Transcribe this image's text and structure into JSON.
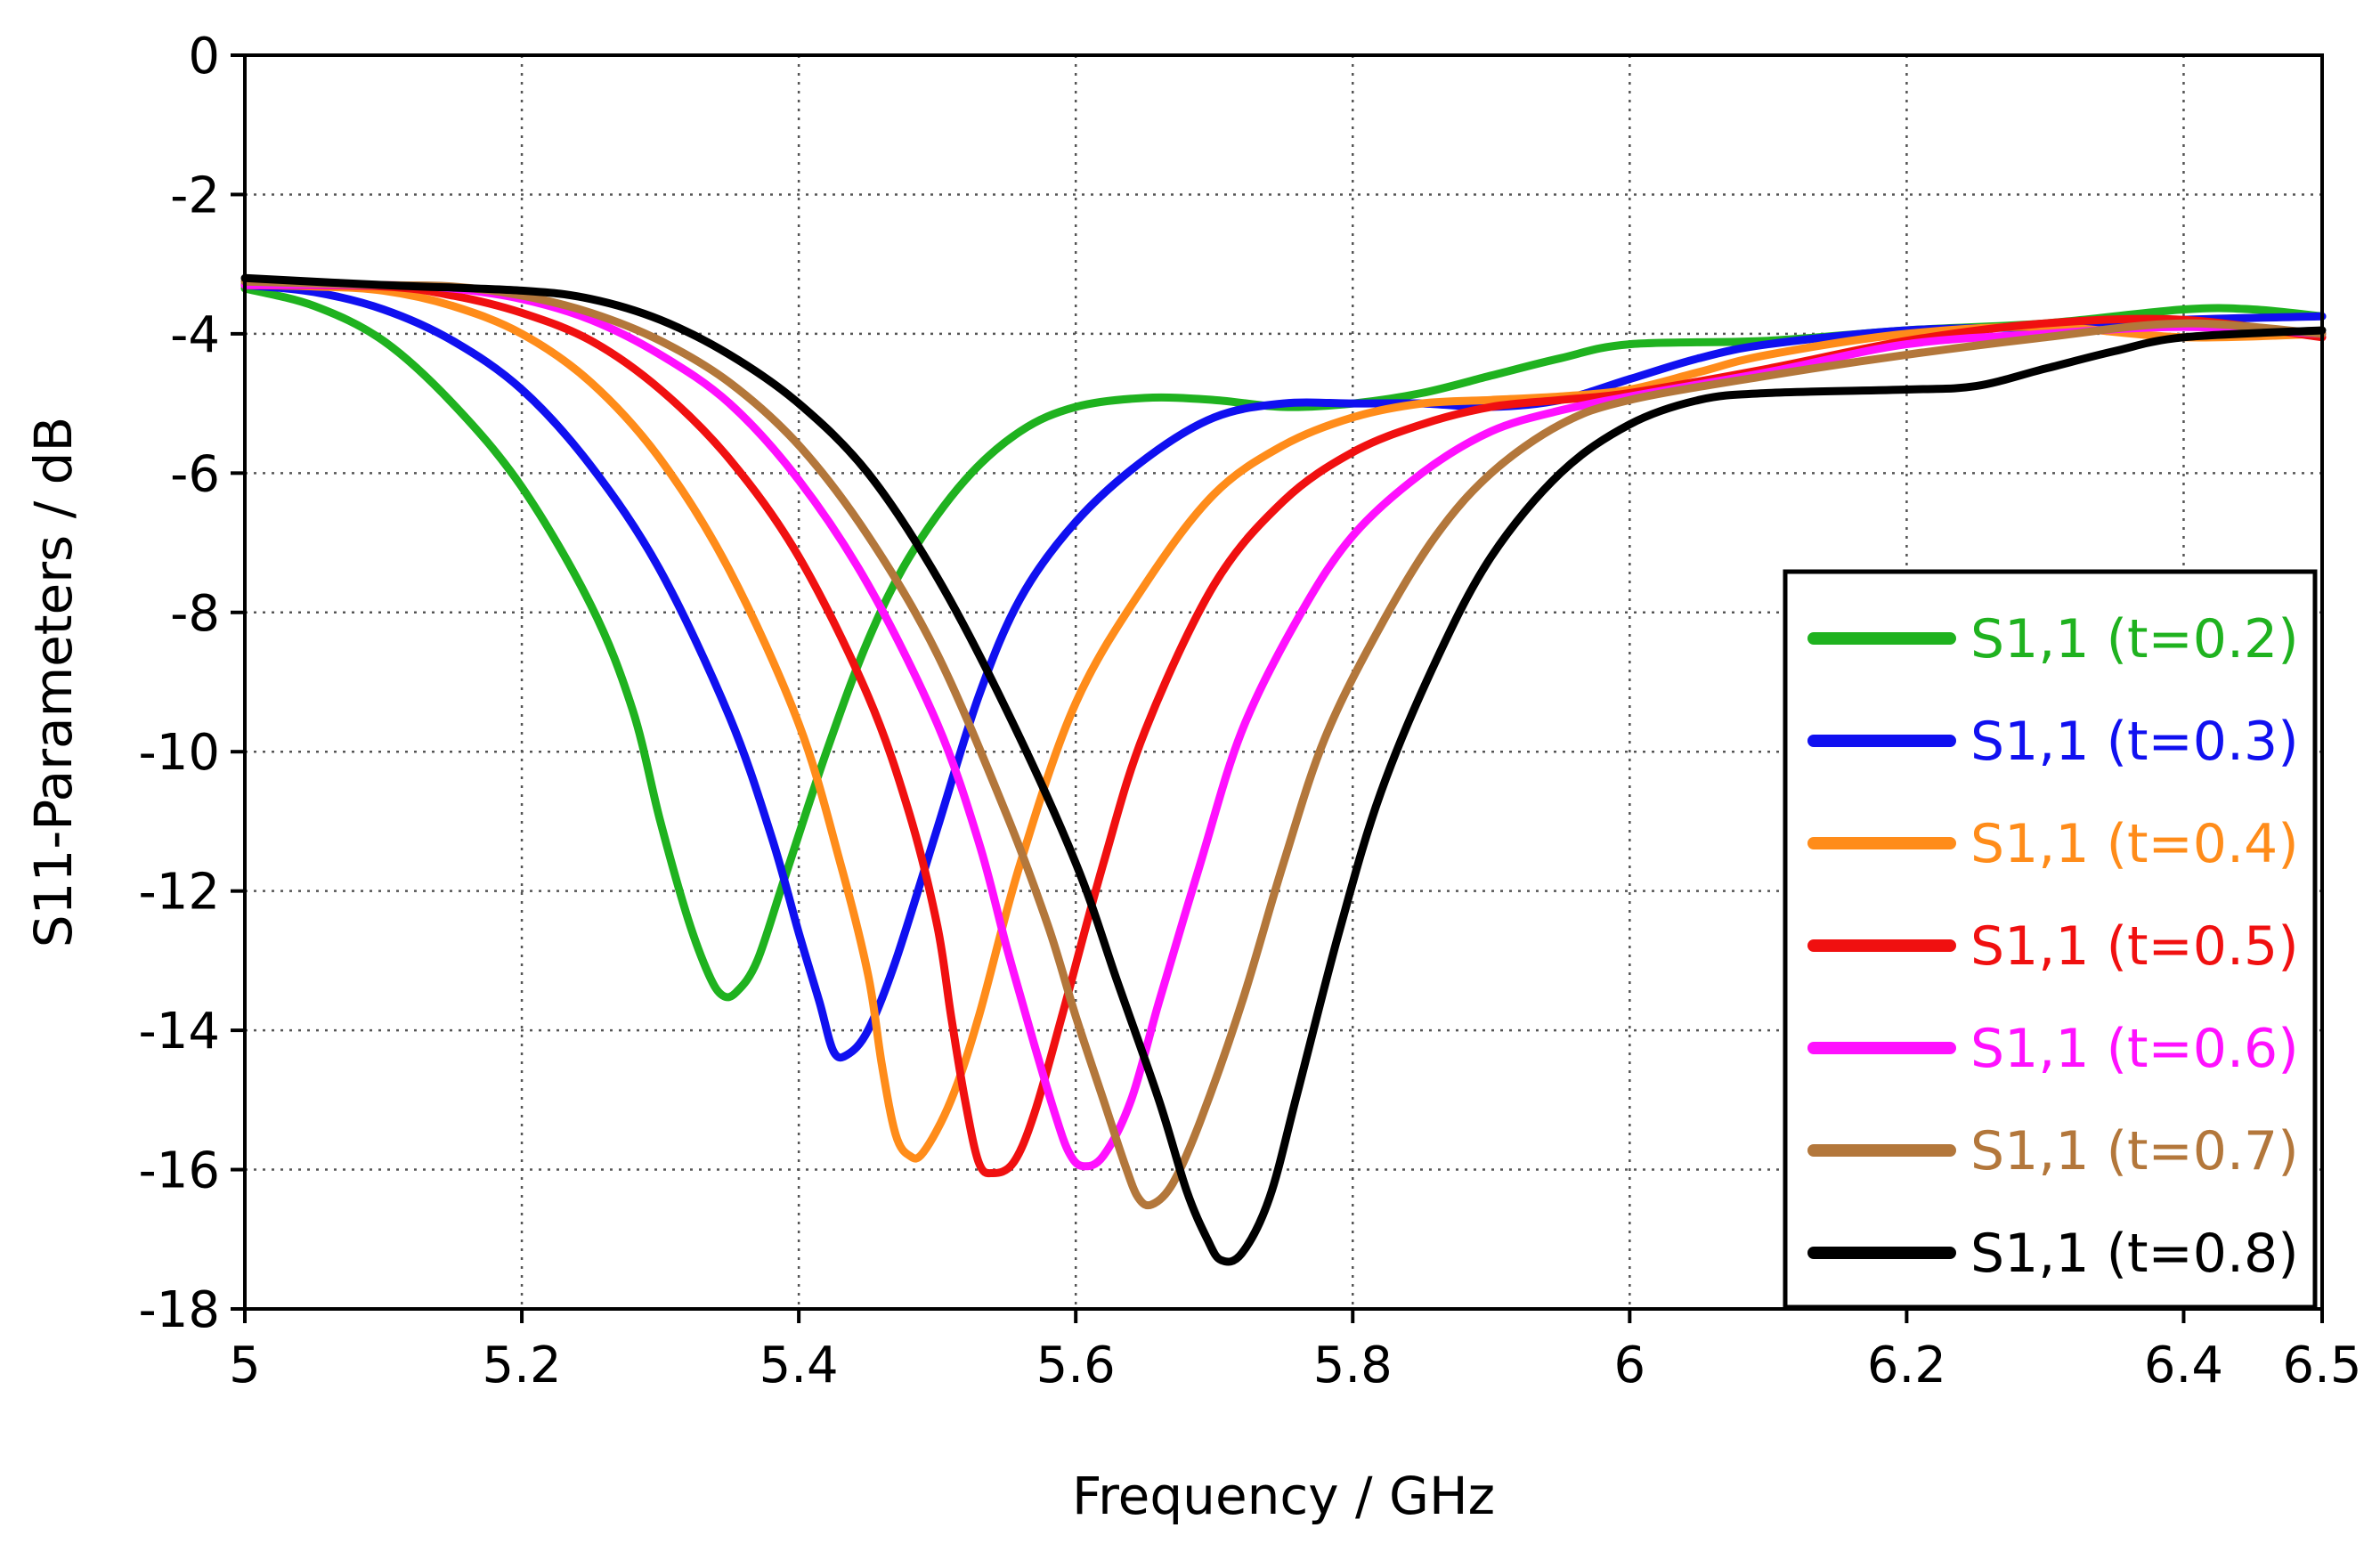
{
  "chart_data": {
    "type": "line",
    "title": "",
    "xlabel": "Frequency / GHz",
    "ylabel": "S11-Parameters / dB",
    "xlim": [
      5,
      6.5
    ],
    "ylim": [
      -18,
      0
    ],
    "xticks": [
      5,
      5.2,
      5.4,
      5.6,
      5.8,
      6,
      6.2,
      6.4,
      6.5
    ],
    "xtick_labels": [
      "5",
      "5.2",
      "5.4",
      "5.6",
      "5.8",
      "6",
      "6.2",
      "6.4",
      "6.5"
    ],
    "yticks": [
      0,
      -2,
      -4,
      -6,
      -8,
      -10,
      -12,
      -14,
      -16,
      -18
    ],
    "ytick_labels": [
      "0",
      "-2",
      "-4",
      "-6",
      "-8",
      "-10",
      "-12",
      "-14",
      "-16",
      "-18"
    ],
    "grid": true,
    "legend_position": "bottom-right",
    "series": [
      {
        "name": "S1,1 (t=0.2)",
        "color": "#1fb21f",
        "points": [
          [
            5.0,
            -3.35
          ],
          [
            5.05,
            -3.6
          ],
          [
            5.1,
            -4.1
          ],
          [
            5.15,
            -5.0
          ],
          [
            5.2,
            -6.2
          ],
          [
            5.25,
            -7.9
          ],
          [
            5.28,
            -9.4
          ],
          [
            5.3,
            -11.0
          ],
          [
            5.32,
            -12.4
          ],
          [
            5.335,
            -13.2
          ],
          [
            5.345,
            -13.5
          ],
          [
            5.355,
            -13.45
          ],
          [
            5.37,
            -13.0
          ],
          [
            5.39,
            -11.8
          ],
          [
            5.42,
            -10.0
          ],
          [
            5.45,
            -8.4
          ],
          [
            5.48,
            -7.2
          ],
          [
            5.52,
            -6.1
          ],
          [
            5.56,
            -5.4
          ],
          [
            5.6,
            -5.05
          ],
          [
            5.65,
            -4.92
          ],
          [
            5.7,
            -4.95
          ],
          [
            5.75,
            -5.05
          ],
          [
            5.8,
            -5.0
          ],
          [
            5.85,
            -4.85
          ],
          [
            5.9,
            -4.6
          ],
          [
            5.95,
            -4.35
          ],
          [
            6.0,
            -4.15
          ],
          [
            6.1,
            -4.1
          ],
          [
            6.2,
            -3.95
          ],
          [
            6.3,
            -3.85
          ],
          [
            6.4,
            -3.65
          ],
          [
            6.45,
            -3.65
          ],
          [
            6.5,
            -3.75
          ]
        ]
      },
      {
        "name": "S1,1 (t=0.3)",
        "color": "#1010f0",
        "points": [
          [
            5.0,
            -3.3
          ],
          [
            5.05,
            -3.4
          ],
          [
            5.1,
            -3.65
          ],
          [
            5.15,
            -4.1
          ],
          [
            5.2,
            -4.8
          ],
          [
            5.25,
            -5.9
          ],
          [
            5.3,
            -7.4
          ],
          [
            5.35,
            -9.5
          ],
          [
            5.38,
            -11.2
          ],
          [
            5.4,
            -12.6
          ],
          [
            5.415,
            -13.6
          ],
          [
            5.425,
            -14.3
          ],
          [
            5.435,
            -14.35
          ],
          [
            5.45,
            -14.0
          ],
          [
            5.47,
            -13.0
          ],
          [
            5.5,
            -11.1
          ],
          [
            5.53,
            -9.2
          ],
          [
            5.56,
            -7.8
          ],
          [
            5.6,
            -6.7
          ],
          [
            5.65,
            -5.8
          ],
          [
            5.7,
            -5.2
          ],
          [
            5.75,
            -5.0
          ],
          [
            5.8,
            -5.0
          ],
          [
            5.85,
            -5.0
          ],
          [
            5.9,
            -5.05
          ],
          [
            5.95,
            -4.95
          ],
          [
            6.0,
            -4.65
          ],
          [
            6.05,
            -4.35
          ],
          [
            6.1,
            -4.15
          ],
          [
            6.2,
            -3.95
          ],
          [
            6.3,
            -3.9
          ],
          [
            6.4,
            -3.8
          ],
          [
            6.5,
            -3.75
          ]
        ]
      },
      {
        "name": "S1,1 (t=0.4)",
        "color": "#ff8c1a",
        "points": [
          [
            5.0,
            -3.3
          ],
          [
            5.05,
            -3.32
          ],
          [
            5.1,
            -3.38
          ],
          [
            5.15,
            -3.6
          ],
          [
            5.2,
            -4.0
          ],
          [
            5.25,
            -4.7
          ],
          [
            5.3,
            -5.8
          ],
          [
            5.35,
            -7.4
          ],
          [
            5.4,
            -9.6
          ],
          [
            5.43,
            -11.6
          ],
          [
            5.45,
            -13.2
          ],
          [
            5.46,
            -14.5
          ],
          [
            5.47,
            -15.5
          ],
          [
            5.48,
            -15.8
          ],
          [
            5.49,
            -15.75
          ],
          [
            5.51,
            -15.0
          ],
          [
            5.53,
            -13.8
          ],
          [
            5.56,
            -11.6
          ],
          [
            5.6,
            -9.3
          ],
          [
            5.65,
            -7.6
          ],
          [
            5.7,
            -6.3
          ],
          [
            5.75,
            -5.6
          ],
          [
            5.8,
            -5.2
          ],
          [
            5.85,
            -5.0
          ],
          [
            5.9,
            -4.95
          ],
          [
            5.95,
            -4.9
          ],
          [
            6.0,
            -4.8
          ],
          [
            6.05,
            -4.55
          ],
          [
            6.1,
            -4.3
          ],
          [
            6.2,
            -4.0
          ],
          [
            6.3,
            -3.9
          ],
          [
            6.4,
            -4.05
          ],
          [
            6.5,
            -4.0
          ]
        ]
      },
      {
        "name": "S1,1 (t=0.5)",
        "color": "#f01010",
        "points": [
          [
            5.0,
            -3.3
          ],
          [
            5.1,
            -3.32
          ],
          [
            5.15,
            -3.45
          ],
          [
            5.2,
            -3.7
          ],
          [
            5.25,
            -4.1
          ],
          [
            5.3,
            -4.8
          ],
          [
            5.35,
            -5.8
          ],
          [
            5.4,
            -7.2
          ],
          [
            5.45,
            -9.2
          ],
          [
            5.48,
            -10.9
          ],
          [
            5.5,
            -12.5
          ],
          [
            5.51,
            -13.8
          ],
          [
            5.52,
            -15.0
          ],
          [
            5.53,
            -15.9
          ],
          [
            5.54,
            -16.05
          ],
          [
            5.555,
            -15.9
          ],
          [
            5.57,
            -15.2
          ],
          [
            5.59,
            -13.8
          ],
          [
            5.62,
            -11.6
          ],
          [
            5.65,
            -9.7
          ],
          [
            5.7,
            -7.6
          ],
          [
            5.75,
            -6.4
          ],
          [
            5.8,
            -5.7
          ],
          [
            5.85,
            -5.3
          ],
          [
            5.9,
            -5.05
          ],
          [
            5.95,
            -4.95
          ],
          [
            6.0,
            -4.85
          ],
          [
            6.1,
            -4.5
          ],
          [
            6.2,
            -4.1
          ],
          [
            6.3,
            -3.85
          ],
          [
            6.4,
            -3.8
          ],
          [
            6.5,
            -4.05
          ]
        ]
      },
      {
        "name": "S1,1 (t=0.6)",
        "color": "#ff10ff",
        "points": [
          [
            5.0,
            -3.3
          ],
          [
            5.1,
            -3.3
          ],
          [
            5.15,
            -3.35
          ],
          [
            5.2,
            -3.5
          ],
          [
            5.25,
            -3.8
          ],
          [
            5.3,
            -4.3
          ],
          [
            5.35,
            -5.0
          ],
          [
            5.4,
            -6.1
          ],
          [
            5.45,
            -7.6
          ],
          [
            5.5,
            -9.6
          ],
          [
            5.53,
            -11.3
          ],
          [
            5.55,
            -12.8
          ],
          [
            5.57,
            -14.2
          ],
          [
            5.585,
            -15.2
          ],
          [
            5.595,
            -15.75
          ],
          [
            5.605,
            -15.95
          ],
          [
            5.62,
            -15.8
          ],
          [
            5.64,
            -15.0
          ],
          [
            5.66,
            -13.6
          ],
          [
            5.69,
            -11.6
          ],
          [
            5.72,
            -9.7
          ],
          [
            5.76,
            -8.1
          ],
          [
            5.8,
            -6.9
          ],
          [
            5.85,
            -6.0
          ],
          [
            5.9,
            -5.4
          ],
          [
            5.95,
            -5.1
          ],
          [
            6.0,
            -4.9
          ],
          [
            6.1,
            -4.55
          ],
          [
            6.2,
            -4.15
          ],
          [
            6.3,
            -4.0
          ],
          [
            6.4,
            -3.9
          ],
          [
            6.5,
            -4.0
          ]
        ]
      },
      {
        "name": "S1,1 (t=0.7)",
        "color": "#b3773b",
        "points": [
          [
            5.0,
            -3.25
          ],
          [
            5.1,
            -3.3
          ],
          [
            5.15,
            -3.32
          ],
          [
            5.2,
            -3.45
          ],
          [
            5.25,
            -3.7
          ],
          [
            5.3,
            -4.1
          ],
          [
            5.35,
            -4.7
          ],
          [
            5.4,
            -5.6
          ],
          [
            5.45,
            -6.9
          ],
          [
            5.5,
            -8.6
          ],
          [
            5.55,
            -10.9
          ],
          [
            5.58,
            -12.5
          ],
          [
            5.6,
            -13.8
          ],
          [
            5.62,
            -15.0
          ],
          [
            5.635,
            -15.9
          ],
          [
            5.645,
            -16.4
          ],
          [
            5.655,
            -16.5
          ],
          [
            5.67,
            -16.2
          ],
          [
            5.69,
            -15.3
          ],
          [
            5.72,
            -13.6
          ],
          [
            5.75,
            -11.6
          ],
          [
            5.78,
            -9.8
          ],
          [
            5.82,
            -8.2
          ],
          [
            5.86,
            -6.9
          ],
          [
            5.9,
            -6.0
          ],
          [
            5.95,
            -5.3
          ],
          [
            6.0,
            -4.95
          ],
          [
            6.1,
            -4.6
          ],
          [
            6.2,
            -4.3
          ],
          [
            6.3,
            -4.05
          ],
          [
            6.4,
            -3.85
          ],
          [
            6.5,
            -4.0
          ]
        ]
      },
      {
        "name": "S1,1 (t=0.8)",
        "color": "#000000",
        "points": [
          [
            5.0,
            -3.2
          ],
          [
            5.1,
            -3.3
          ],
          [
            5.2,
            -3.38
          ],
          [
            5.25,
            -3.5
          ],
          [
            5.3,
            -3.8
          ],
          [
            5.35,
            -4.3
          ],
          [
            5.4,
            -5.0
          ],
          [
            5.45,
            -6.0
          ],
          [
            5.5,
            -7.5
          ],
          [
            5.55,
            -9.4
          ],
          [
            5.6,
            -11.6
          ],
          [
            5.63,
            -13.3
          ],
          [
            5.66,
            -15.0
          ],
          [
            5.68,
            -16.3
          ],
          [
            5.695,
            -17.0
          ],
          [
            5.705,
            -17.3
          ],
          [
            5.72,
            -17.2
          ],
          [
            5.74,
            -16.4
          ],
          [
            5.76,
            -14.9
          ],
          [
            5.79,
            -12.6
          ],
          [
            5.82,
            -10.6
          ],
          [
            5.86,
            -8.7
          ],
          [
            5.9,
            -7.2
          ],
          [
            5.95,
            -6.0
          ],
          [
            6.0,
            -5.3
          ],
          [
            6.05,
            -4.95
          ],
          [
            6.1,
            -4.85
          ],
          [
            6.2,
            -4.8
          ],
          [
            6.25,
            -4.75
          ],
          [
            6.3,
            -4.5
          ],
          [
            6.35,
            -4.25
          ],
          [
            6.4,
            -4.05
          ],
          [
            6.5,
            -3.95
          ]
        ]
      }
    ]
  }
}
